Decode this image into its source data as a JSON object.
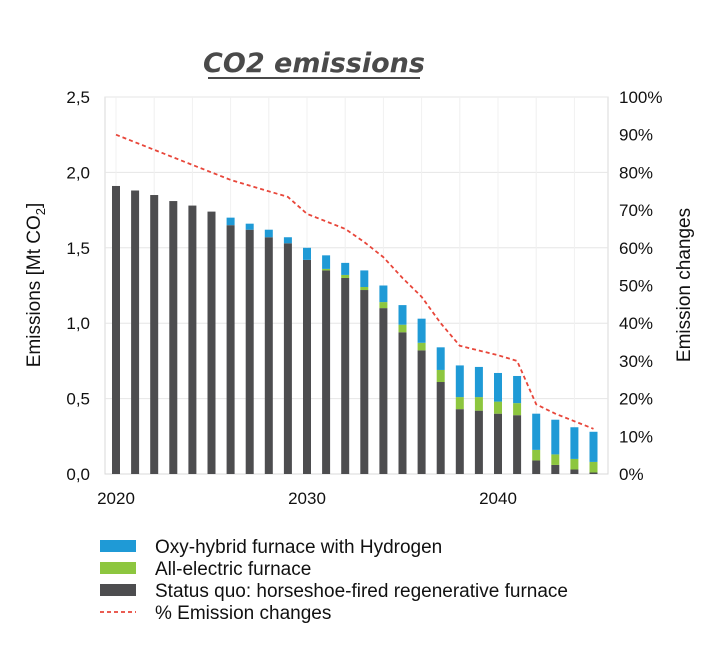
{
  "chart_data": {
    "type": "bar",
    "stacked": true,
    "title": "CO2 emissions",
    "ylabel_left": "Emissions [Mt CO",
    "ylabel_left_sub": "2",
    "ylabel_left_close": "]",
    "ylabel_right": "Emission changes",
    "ylim": [
      0,
      2.5
    ],
    "ylim_right": [
      0,
      100
    ],
    "y_ticks": [
      "0,0",
      "0,5",
      "1,0",
      "1,5",
      "2,0",
      "2,5"
    ],
    "y_ticks_right": [
      "0%",
      "10%",
      "20%",
      "30%",
      "40%",
      "50%",
      "60%",
      "70%",
      "80%",
      "90%",
      "100%"
    ],
    "x_ticks": [
      "2020",
      "2030",
      "2040"
    ],
    "x": [
      2020,
      2021,
      2022,
      2023,
      2024,
      2025,
      2026,
      2027,
      2028,
      2029,
      2030,
      2031,
      2032,
      2033,
      2034,
      2035,
      2036,
      2037,
      2038,
      2039,
      2040,
      2041,
      2042,
      2043,
      2044,
      2045
    ],
    "series": [
      {
        "name": "Status quo: horseshoe-fired regenerative furnace",
        "color": "#4d4d4f",
        "values": [
          1.91,
          1.88,
          1.85,
          1.81,
          1.78,
          1.74,
          1.65,
          1.62,
          1.57,
          1.53,
          1.42,
          1.35,
          1.3,
          1.22,
          1.1,
          0.94,
          0.82,
          0.61,
          0.43,
          0.42,
          0.4,
          0.39,
          0.09,
          0.06,
          0.03,
          0.01
        ]
      },
      {
        "name": "All-electric furnace",
        "color": "#8dc63f",
        "values": [
          0,
          0,
          0,
          0,
          0,
          0,
          0,
          0,
          0,
          0,
          0,
          0.01,
          0.02,
          0.02,
          0.04,
          0.05,
          0.05,
          0.08,
          0.08,
          0.09,
          0.08,
          0.08,
          0.07,
          0.07,
          0.07,
          0.07
        ]
      },
      {
        "name": "Oxy-hybrid furnace with Hydrogen",
        "color": "#1f9ad6",
        "values": [
          0,
          0,
          0,
          0,
          0,
          0,
          0.05,
          0.04,
          0.05,
          0.04,
          0.08,
          0.09,
          0.08,
          0.11,
          0.11,
          0.13,
          0.16,
          0.15,
          0.21,
          0.2,
          0.19,
          0.18,
          0.24,
          0.23,
          0.21,
          0.2
        ]
      }
    ],
    "line_series": {
      "name": "% Emission changes",
      "color": "#e8463a",
      "dashed": true,
      "x": [
        2020,
        2022,
        2024,
        2026,
        2028,
        2029,
        2030,
        2032,
        2033,
        2034,
        2035,
        2036,
        2037,
        2038,
        2040,
        2041,
        2042,
        2043,
        2045
      ],
      "values": [
        90,
        86,
        82,
        78,
        75,
        73.5,
        69,
        65,
        61.5,
        57.5,
        52,
        47,
        40,
        34,
        31.5,
        30,
        18.5,
        16,
        12
      ]
    },
    "legend": [
      {
        "label": "Oxy-hybrid furnace with Hydrogen",
        "swatch": "bar",
        "color": "#1f9ad6"
      },
      {
        "label": "All-electric furnace",
        "swatch": "bar",
        "color": "#8dc63f"
      },
      {
        "label": "Status quo: horseshoe-fired regenerative furnace",
        "swatch": "bar",
        "color": "#4d4d4f"
      },
      {
        "label": "% Emission changes",
        "swatch": "dash",
        "color": "#e8463a"
      }
    ],
    "legend_position": "bottom",
    "grid": true
  }
}
